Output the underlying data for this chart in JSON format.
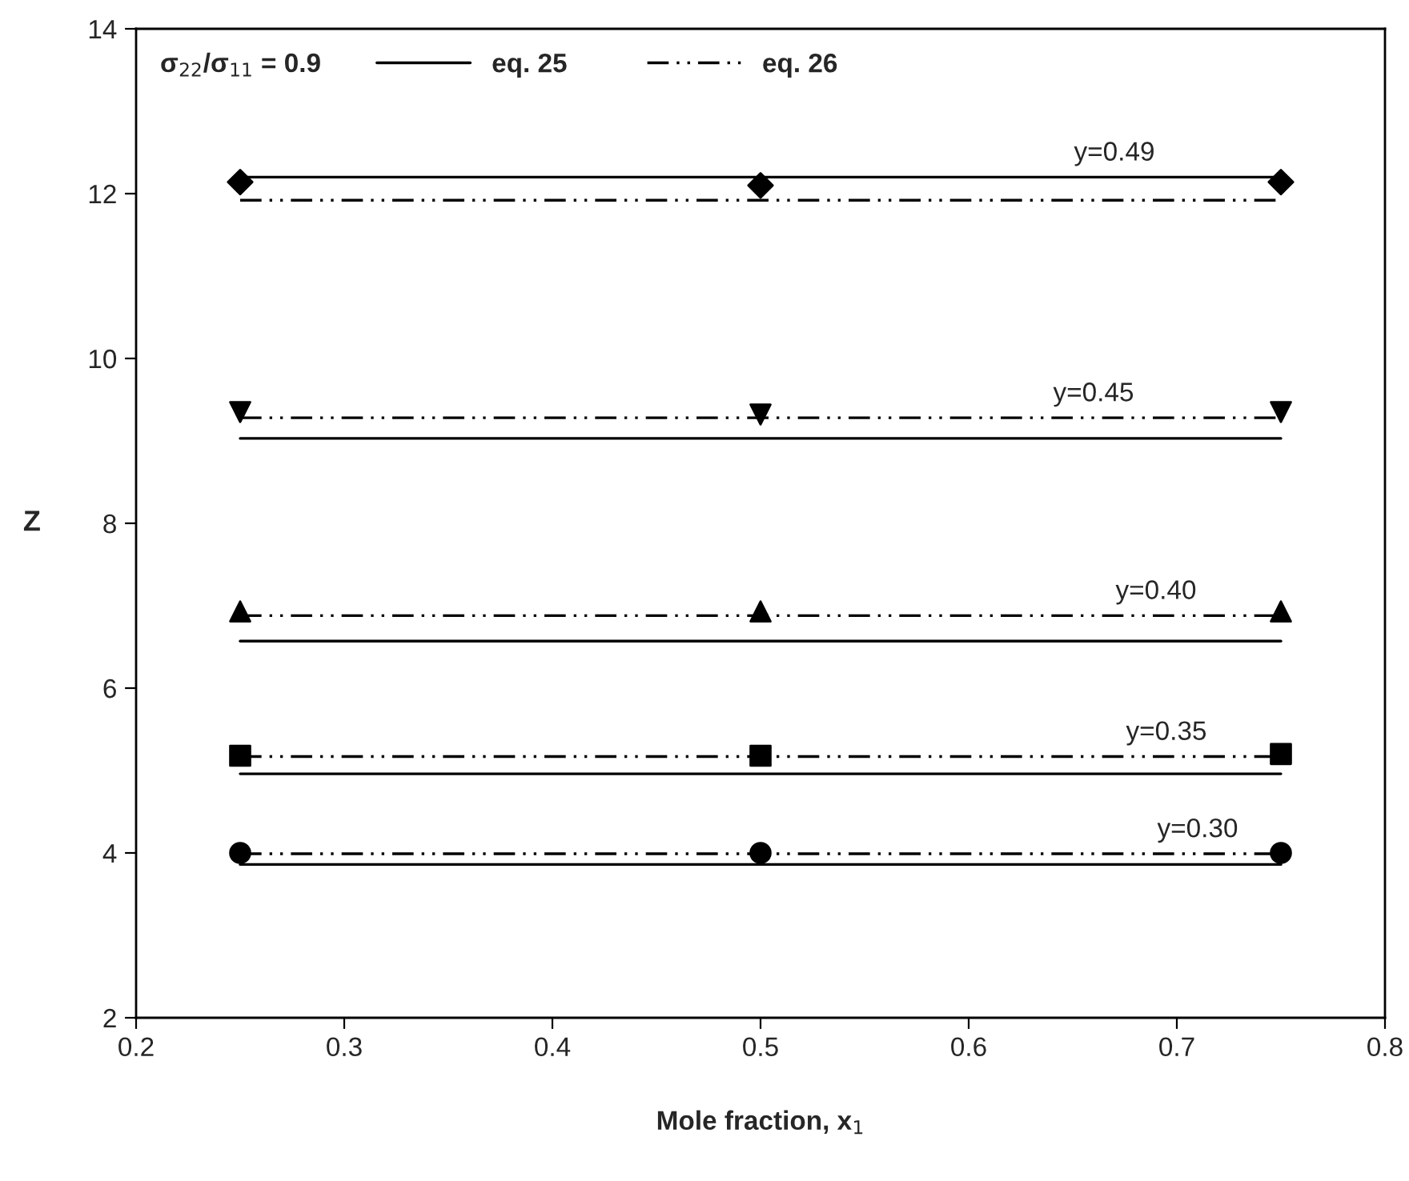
{
  "chart_data": {
    "type": "line",
    "xlabel": "Mole fraction, x$_{1}$",
    "ylabel": "Z",
    "legend_title": "σ$_{22}$/σ$_{11}$ = 0.9",
    "legend": "top left",
    "grid": false,
    "xlim": [
      0.2,
      0.8
    ],
    "xticks": [
      0.2,
      0.3,
      0.4,
      0.5,
      0.6,
      0.7,
      0.8
    ],
    "ylim": [
      2,
      14
    ],
    "yticks": [
      2,
      4,
      6,
      8,
      10,
      12,
      14
    ],
    "series": [
      {
        "name": "eq. 25",
        "line_style": "solid",
        "color": "#000000",
        "x": [
          0.25,
          0.5,
          0.75
        ],
        "values": [
          12.2,
          12.2,
          12.2
        ]
      },
      {
        "name": "eq. 26",
        "line_style": "dashdot",
        "color": "#000000",
        "x": [
          0.25,
          0.5,
          0.75
        ],
        "values": [
          11.92,
          11.92,
          11.92
        ]
      },
      {
        "type": "scatter",
        "marker": "diamond",
        "color": "#000000",
        "x": [
          0.25,
          0.5,
          0.75
        ],
        "values": [
          12.14,
          12.1,
          12.14
        ]
      },
      {
        "type": "line",
        "line_style": "solid",
        "color": "#000000",
        "x": [
          0.25,
          0.5,
          0.75
        ],
        "values": [
          9.03,
          9.03,
          9.03
        ]
      },
      {
        "type": "line",
        "line_style": "dashdot",
        "color": "#000000",
        "x": [
          0.25,
          0.5,
          0.75
        ],
        "values": [
          9.28,
          9.28,
          9.28
        ]
      },
      {
        "type": "scatter",
        "marker": "triangle_down",
        "color": "#000000",
        "x": [
          0.25,
          0.5,
          0.75
        ],
        "values": [
          9.35,
          9.32,
          9.35
        ]
      },
      {
        "type": "line",
        "line_style": "solid",
        "color": "#000000",
        "x": [
          0.25,
          0.5,
          0.75
        ],
        "values": [
          6.57,
          6.57,
          6.57
        ]
      },
      {
        "type": "line",
        "line_style": "dashdot",
        "color": "#000000",
        "x": [
          0.25,
          0.5,
          0.75
        ],
        "values": [
          6.88,
          6.88,
          6.88
        ]
      },
      {
        "type": "scatter",
        "marker": "triangle",
        "color": "#000000",
        "x": [
          0.25,
          0.5,
          0.75
        ],
        "values": [
          6.93,
          6.93,
          6.93
        ]
      },
      {
        "type": "line",
        "line_style": "solid",
        "color": "#000000",
        "x": [
          0.25,
          0.5,
          0.75
        ],
        "values": [
          4.96,
          4.96,
          4.96
        ]
      },
      {
        "type": "line",
        "line_style": "dashdot",
        "color": "#000000",
        "x": [
          0.25,
          0.5,
          0.75
        ],
        "values": [
          5.17,
          5.17,
          5.17
        ]
      },
      {
        "type": "scatter",
        "marker": "square",
        "color": "#000000",
        "x": [
          0.25,
          0.5,
          0.75
        ],
        "values": [
          5.18,
          5.18,
          5.2
        ]
      },
      {
        "type": "line",
        "line_style": "solid",
        "color": "#000000",
        "x": [
          0.25,
          0.5,
          0.75
        ],
        "values": [
          3.86,
          3.86,
          3.86
        ]
      },
      {
        "type": "line",
        "line_style": "dashdot",
        "color": "#000000",
        "x": [
          0.25,
          0.5,
          0.75
        ],
        "values": [
          3.99,
          3.99,
          3.99
        ]
      },
      {
        "type": "scatter",
        "marker": "circle",
        "color": "#000000",
        "x": [
          0.25,
          0.5,
          0.75
        ],
        "values": [
          4.0,
          4.0,
          4.0
        ]
      }
    ],
    "annotations": [
      {
        "text": "y=0.49",
        "x": 0.67,
        "y": 12.2
      },
      {
        "text": "y=0.45",
        "x": 0.66,
        "y": 9.28
      },
      {
        "text": "y=0.40",
        "x": 0.69,
        "y": 6.88
      },
      {
        "text": "y=0.35",
        "x": 0.695,
        "y": 5.17
      },
      {
        "text": "y=0.30",
        "x": 0.71,
        "y": 3.99
      }
    ]
  }
}
